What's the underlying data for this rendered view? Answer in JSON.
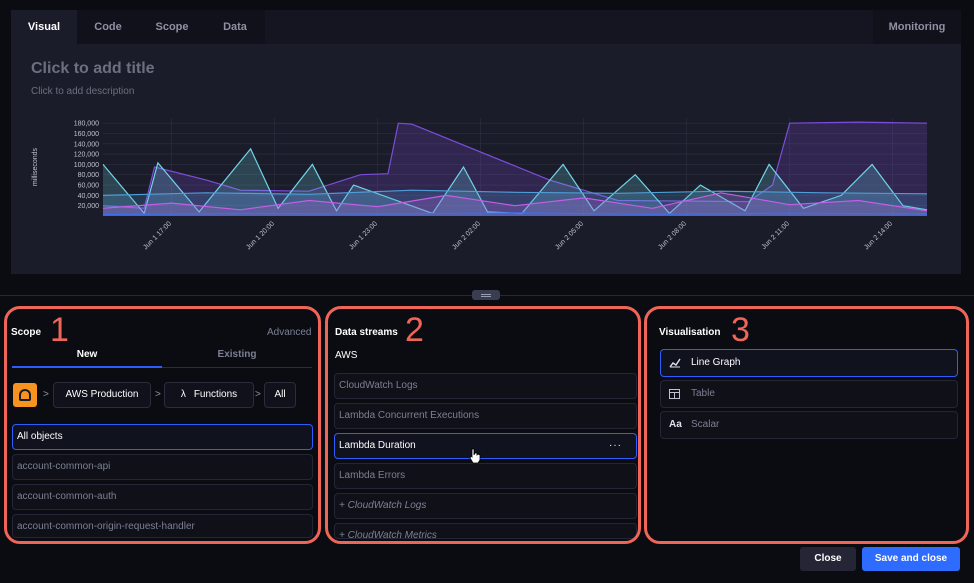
{
  "tabs": [
    {
      "label": "Visual",
      "active": true
    },
    {
      "label": "Code",
      "active": false
    },
    {
      "label": "Scope",
      "active": false
    },
    {
      "label": "Data",
      "active": false
    }
  ],
  "monitoring_tab": "Monitoring",
  "chart_panel": {
    "title_placeholder": "Click to add title",
    "description_placeholder": "Click to add description"
  },
  "chart_data": {
    "type": "area",
    "title": "",
    "ylabel": "milliseconds",
    "xlabel": "",
    "ylim": [
      0,
      190000
    ],
    "yticks": [
      20000,
      40000,
      60000,
      80000,
      100000,
      120000,
      140000,
      160000,
      180000
    ],
    "ytick_labels": [
      "20,000",
      "40,000",
      "60,000",
      "80,000",
      "100,000",
      "120,000",
      "140,000",
      "160,000",
      "180,000"
    ],
    "x_tick_labels": [
      "Jun 1 17:00",
      "Jun 1 20:00",
      "Jun 1 23:00",
      "Jun 2 02:00",
      "Jun 2 05:00",
      "Jun 2 08:00",
      "Jun 2 11:00",
      "Jun 2 14:00"
    ],
    "x_tick_hours": [
      2,
      5,
      8,
      11,
      14,
      17,
      20,
      23
    ],
    "x_range_hours": [
      0,
      24
    ],
    "grid": true,
    "legend": "none",
    "series": [
      {
        "color": "#7b4ddb",
        "x": [
          0,
          1.2,
          1.5,
          3,
          4,
          6,
          7.5,
          8.3,
          8.6,
          9,
          13,
          15,
          18.8,
          19.5,
          20,
          22,
          24
        ],
        "values": [
          20000,
          15000,
          95000,
          70000,
          50000,
          48000,
          80000,
          82000,
          180000,
          178000,
          70000,
          30000,
          28000,
          60000,
          180000,
          182000,
          180000
        ]
      },
      {
        "color": "#6fd6e6",
        "x": [
          0,
          1.2,
          1.6,
          2.8,
          4.3,
          5.1,
          6.1,
          6.8,
          7.3,
          9.6,
          10.5,
          11.2,
          12.2,
          13.4,
          14.3,
          15.5,
          16.5,
          17.4,
          18.7,
          19.4,
          20.4,
          21.5,
          22.4,
          23.3,
          24
        ],
        "values": [
          100000,
          5000,
          103000,
          8000,
          130000,
          15000,
          100000,
          10000,
          60000,
          5000,
          95000,
          8000,
          5000,
          100000,
          10000,
          80000,
          5000,
          60000,
          10000,
          100000,
          15000,
          40000,
          100000,
          20000,
          12000
        ]
      },
      {
        "color": "#4f9ed6",
        "x": [
          0,
          3,
          6,
          9,
          12,
          15,
          18,
          21,
          24
        ],
        "values": [
          40000,
          45000,
          42000,
          50000,
          46000,
          44000,
          48000,
          45000,
          43000
        ]
      },
      {
        "color": "#c45ee6",
        "x": [
          0,
          2,
          4,
          6,
          8,
          10,
          12,
          14,
          16,
          18,
          20,
          22,
          24
        ],
        "values": [
          15000,
          25000,
          12000,
          30000,
          18000,
          40000,
          20000,
          35000,
          15000,
          45000,
          22000,
          30000,
          10000
        ]
      },
      {
        "color": "#3b6ef0",
        "x": [
          0,
          4,
          8,
          12,
          16,
          20,
          24
        ],
        "values": [
          3000,
          5000,
          4000,
          6000,
          3500,
          5500,
          4000
        ]
      }
    ]
  },
  "scope": {
    "title": "Scope",
    "advanced": "Advanced",
    "tab_new": "New",
    "tab_existing": "Existing",
    "breadcrumb": {
      "account": "AWS Production",
      "service": "Functions",
      "filter": "All",
      "separator": ">",
      "service_icon": "λ"
    },
    "items": [
      {
        "label": "All objects",
        "selected": true
      },
      {
        "label": "account-common-api",
        "selected": false
      },
      {
        "label": "account-common-auth",
        "selected": false
      },
      {
        "label": "account-common-origin-request-handler",
        "selected": false
      }
    ]
  },
  "data_streams": {
    "title": "Data streams",
    "group": "AWS",
    "items": [
      {
        "label": "CloudWatch Logs",
        "selected": false
      },
      {
        "label": "Lambda Concurrent Executions",
        "selected": false
      },
      {
        "label": "Lambda Duration",
        "selected": true
      },
      {
        "label": "Lambda Errors",
        "selected": false
      },
      {
        "label": "+ CloudWatch Logs",
        "selected": false
      },
      {
        "label": "+ CloudWatch Metrics",
        "selected": false
      }
    ],
    "row_menu": "···"
  },
  "visualisation": {
    "title": "Visualisation",
    "items": [
      {
        "label": "Line Graph",
        "icon": "line-chart-icon",
        "glyph": "📈",
        "selected": true
      },
      {
        "label": "Table",
        "icon": "table-icon",
        "glyph": "▦",
        "selected": false
      },
      {
        "label": "Scalar",
        "icon": "text-icon",
        "glyph": "Aa",
        "selected": false
      }
    ]
  },
  "annotations": {
    "one": "1",
    "two": "2",
    "three": "3"
  },
  "footer": {
    "close_label": "Close",
    "save_label": "Save and close"
  },
  "colors": {
    "accent": "#2e6bff",
    "highlight": "#ef6659",
    "aws_orange": "#f7931e"
  }
}
